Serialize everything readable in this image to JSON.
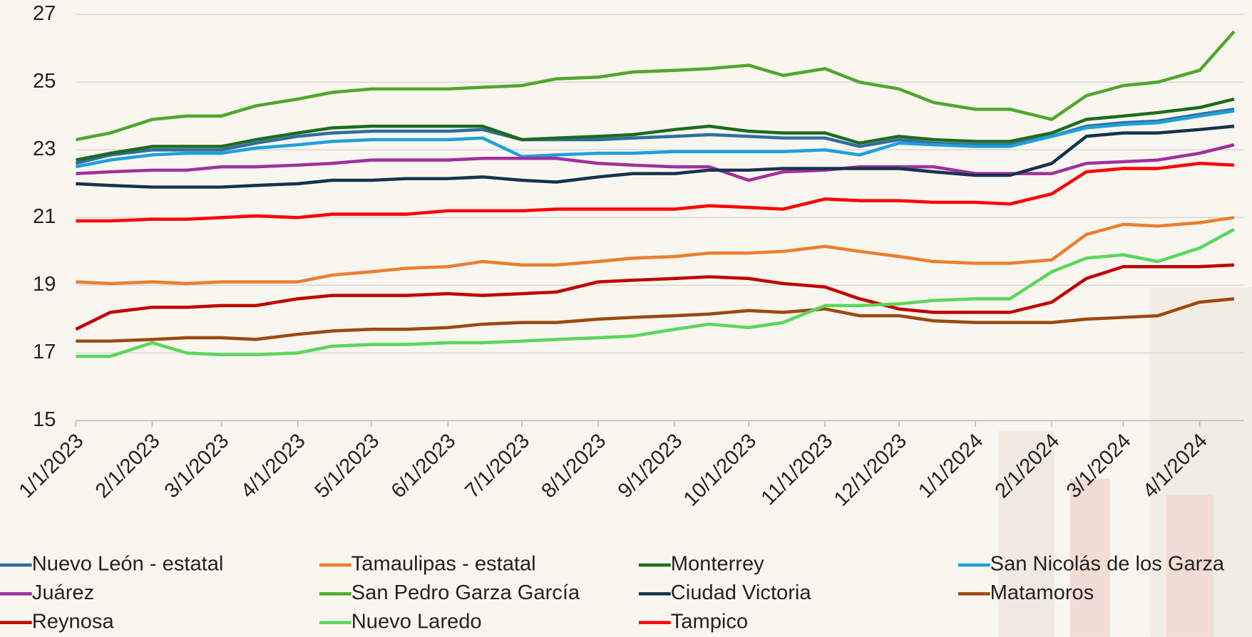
{
  "chart_data": {
    "type": "line",
    "x": [
      "1/1/2023",
      "1/15/2023",
      "2/1/2023",
      "2/15/2023",
      "3/1/2023",
      "3/15/2023",
      "4/1/2023",
      "4/15/2023",
      "5/1/2023",
      "5/15/2023",
      "6/1/2023",
      "6/15/2023",
      "7/1/2023",
      "7/15/2023",
      "8/1/2023",
      "8/15/2023",
      "9/1/2023",
      "9/15/2023",
      "10/1/2023",
      "10/15/2023",
      "11/1/2023",
      "11/15/2023",
      "12/1/2023",
      "12/15/2023",
      "1/1/2024",
      "1/15/2024",
      "2/1/2024",
      "2/15/2024",
      "3/1/2024",
      "3/15/2024",
      "4/1/2024",
      "4/15/2024"
    ],
    "xlim": [
      "1/1/2023",
      "4/19/2024"
    ],
    "xticks": [
      "1/1/2023",
      "2/1/2023",
      "3/1/2023",
      "4/1/2023",
      "5/1/2023",
      "6/1/2023",
      "7/1/2023",
      "8/1/2023",
      "9/1/2023",
      "10/1/2023",
      "11/1/2023",
      "12/1/2023",
      "1/1/2024",
      "2/1/2024",
      "3/1/2024",
      "4/1/2024"
    ],
    "ylim": [
      15,
      27
    ],
    "yticks": [
      15,
      17,
      19,
      21,
      23,
      25,
      27
    ],
    "grid": true,
    "legend": "bottom",
    "series": [
      {
        "name": "Nuevo León - estatal",
        "color": "#2e6e9e",
        "values": [
          22.6,
          22.85,
          23.0,
          23.0,
          23.0,
          23.2,
          23.4,
          23.5,
          23.55,
          23.55,
          23.55,
          23.6,
          23.3,
          23.3,
          23.3,
          23.35,
          23.4,
          23.45,
          23.4,
          23.35,
          23.35,
          23.1,
          23.3,
          23.2,
          23.15,
          23.15,
          23.4,
          23.7,
          23.8,
          23.85,
          24.05,
          24.2
        ]
      },
      {
        "name": "Tamaulipas - estatal",
        "color": "#ed7d31",
        "values": [
          19.1,
          19.05,
          19.1,
          19.05,
          19.1,
          19.1,
          19.1,
          19.3,
          19.4,
          19.5,
          19.55,
          19.7,
          19.6,
          19.6,
          19.7,
          19.8,
          19.85,
          19.95,
          19.95,
          20.0,
          20.15,
          20.0,
          19.85,
          19.7,
          19.65,
          19.65,
          19.75,
          20.5,
          20.8,
          20.75,
          20.85,
          21.0
        ]
      },
      {
        "name": "Monterrey",
        "color": "#1e6b1e",
        "values": [
          22.7,
          22.9,
          23.1,
          23.1,
          23.1,
          23.3,
          23.5,
          23.65,
          23.7,
          23.7,
          23.7,
          23.7,
          23.3,
          23.35,
          23.4,
          23.45,
          23.6,
          23.7,
          23.55,
          23.5,
          23.5,
          23.2,
          23.4,
          23.3,
          23.25,
          23.25,
          23.5,
          23.9,
          24.0,
          24.1,
          24.25,
          24.5
        ]
      },
      {
        "name": "San Nicolás de los Garza",
        "color": "#1ea0dc",
        "values": [
          22.5,
          22.7,
          22.85,
          22.9,
          22.9,
          23.05,
          23.15,
          23.25,
          23.3,
          23.3,
          23.3,
          23.35,
          22.8,
          22.85,
          22.9,
          22.9,
          22.95,
          22.95,
          22.95,
          22.95,
          23.0,
          22.85,
          23.2,
          23.15,
          23.1,
          23.1,
          23.4,
          23.65,
          23.75,
          23.8,
          24.0,
          24.15
        ]
      },
      {
        "name": "Juárez",
        "color": "#a030a0",
        "values": [
          22.3,
          22.35,
          22.4,
          22.4,
          22.5,
          22.5,
          22.55,
          22.6,
          22.7,
          22.7,
          22.7,
          22.75,
          22.75,
          22.75,
          22.6,
          22.55,
          22.5,
          22.5,
          22.1,
          22.35,
          22.4,
          22.5,
          22.5,
          22.5,
          22.3,
          22.3,
          22.3,
          22.6,
          22.65,
          22.7,
          22.9,
          23.15
        ]
      },
      {
        "name": "San Pedro Garza García",
        "color": "#4ea72e",
        "values": [
          23.3,
          23.5,
          23.9,
          24.0,
          24.0,
          24.3,
          24.5,
          24.7,
          24.8,
          24.8,
          24.8,
          24.85,
          24.9,
          25.1,
          25.15,
          25.3,
          25.35,
          25.4,
          25.5,
          25.2,
          25.4,
          25.0,
          24.8,
          24.4,
          24.2,
          24.2,
          23.9,
          24.6,
          24.9,
          25.0,
          25.35,
          26.5
        ]
      },
      {
        "name": "Ciudad Victoria",
        "color": "#16324f",
        "values": [
          22.0,
          21.95,
          21.9,
          21.9,
          21.9,
          21.95,
          22.0,
          22.1,
          22.1,
          22.15,
          22.15,
          22.2,
          22.1,
          22.05,
          22.2,
          22.3,
          22.3,
          22.4,
          22.4,
          22.45,
          22.45,
          22.45,
          22.45,
          22.35,
          22.25,
          22.25,
          22.6,
          23.4,
          23.5,
          23.5,
          23.6,
          23.7
        ]
      },
      {
        "name": "Matamoros",
        "color": "#9e480e",
        "values": [
          17.35,
          17.35,
          17.4,
          17.45,
          17.45,
          17.4,
          17.55,
          17.65,
          17.7,
          17.7,
          17.75,
          17.85,
          17.9,
          17.9,
          18.0,
          18.05,
          18.1,
          18.15,
          18.25,
          18.2,
          18.3,
          18.1,
          18.1,
          17.95,
          17.9,
          17.9,
          17.9,
          18.0,
          18.05,
          18.1,
          18.5,
          18.6
        ]
      },
      {
        "name": "Reynosa",
        "color": "#c00000",
        "values": [
          17.7,
          18.2,
          18.35,
          18.35,
          18.4,
          18.4,
          18.6,
          18.7,
          18.7,
          18.7,
          18.75,
          18.7,
          18.75,
          18.8,
          19.1,
          19.15,
          19.2,
          19.25,
          19.2,
          19.05,
          18.95,
          18.6,
          18.3,
          18.2,
          18.2,
          18.2,
          18.5,
          19.2,
          19.55,
          19.55,
          19.55,
          19.6
        ]
      },
      {
        "name": "Nuevo Laredo",
        "color": "#5ad75a",
        "values": [
          16.9,
          16.9,
          17.3,
          17.0,
          16.95,
          16.95,
          17.0,
          17.2,
          17.25,
          17.25,
          17.3,
          17.3,
          17.35,
          17.4,
          17.45,
          17.5,
          17.7,
          17.85,
          17.75,
          17.9,
          18.4,
          18.4,
          18.45,
          18.55,
          18.6,
          18.6,
          19.4,
          19.8,
          19.9,
          19.7,
          20.1,
          20.65
        ]
      },
      {
        "name": "Tampico",
        "color": "#ff0000",
        "values": [
          20.9,
          20.9,
          20.95,
          20.95,
          21.0,
          21.05,
          21.0,
          21.1,
          21.1,
          21.1,
          21.2,
          21.2,
          21.2,
          21.25,
          21.25,
          21.25,
          21.25,
          21.35,
          21.3,
          21.25,
          21.55,
          21.5,
          21.5,
          21.45,
          21.45,
          21.4,
          21.7,
          22.35,
          22.45,
          22.45,
          22.6,
          22.55
        ]
      }
    ]
  }
}
